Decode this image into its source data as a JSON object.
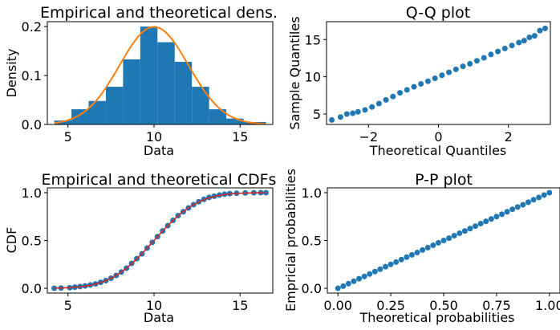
{
  "chart_data": [
    {
      "id": "density",
      "type": "bar",
      "title": "Empirical and theoretical dens.",
      "xlabel": "Data",
      "ylabel": "Density",
      "xlim": [
        3.8,
        16.9
      ],
      "ylim": [
        0,
        0.21
      ],
      "xticks": [
        5,
        10,
        15
      ],
      "yticks": [
        0.0,
        0.1,
        0.2
      ],
      "ytick_labels": [
        "0.0",
        "0.1",
        "0.2"
      ],
      "histogram": {
        "color": "#1f77b4",
        "bins": [
          {
            "x0": 4.2,
            "x1": 5.2,
            "density": 0.008
          },
          {
            "x0": 5.2,
            "x1": 6.2,
            "density": 0.031
          },
          {
            "x0": 6.2,
            "x1": 7.2,
            "density": 0.048
          },
          {
            "x0": 7.2,
            "x1": 8.2,
            "density": 0.077
          },
          {
            "x0": 8.2,
            "x1": 9.2,
            "density": 0.133
          },
          {
            "x0": 9.2,
            "x1": 10.2,
            "density": 0.2
          },
          {
            "x0": 10.2,
            "x1": 11.2,
            "density": 0.168
          },
          {
            "x0": 11.2,
            "x1": 12.2,
            "density": 0.128
          },
          {
            "x0": 12.2,
            "x1": 13.2,
            "density": 0.077
          },
          {
            "x0": 13.2,
            "x1": 14.2,
            "density": 0.031
          },
          {
            "x0": 14.2,
            "x1": 15.2,
            "density": 0.012
          },
          {
            "x0": 15.2,
            "x1": 16.5,
            "density": 0.005
          }
        ]
      },
      "curve": {
        "type": "normal_pdf",
        "mean": 10,
        "sd": 2,
        "x_range": [
          4.2,
          16.5
        ],
        "color": "#ff7f0e"
      }
    },
    {
      "id": "qq",
      "type": "scatter",
      "title": "Q-Q plot",
      "xlabel": "Theoretical Quantiles",
      "ylabel": "Sample Quantiles",
      "xlim": [
        -3.2,
        3.2
      ],
      "ylim": [
        3.6,
        17.4
      ],
      "xticks": [
        -2,
        0,
        2
      ],
      "xtick_labels": [
        "−2",
        "0",
        "2"
      ],
      "yticks": [
        5,
        10,
        15
      ],
      "color": "#1f77b4",
      "points": [
        [
          -3.05,
          4.2
        ],
        [
          -2.8,
          4.6
        ],
        [
          -2.62,
          5.0
        ],
        [
          -2.45,
          5.1
        ],
        [
          -2.3,
          5.3
        ],
        [
          -2.1,
          5.55
        ],
        [
          -1.9,
          5.95
        ],
        [
          -1.7,
          6.4
        ],
        [
          -1.5,
          6.9
        ],
        [
          -1.3,
          7.35
        ],
        [
          -1.1,
          7.85
        ],
        [
          -0.9,
          8.25
        ],
        [
          -0.7,
          8.65
        ],
        [
          -0.5,
          9.05
        ],
        [
          -0.3,
          9.4
        ],
        [
          -0.1,
          9.8
        ],
        [
          0.1,
          10.2
        ],
        [
          0.3,
          10.6
        ],
        [
          0.5,
          11.0
        ],
        [
          0.7,
          11.4
        ],
        [
          0.9,
          11.75
        ],
        [
          1.1,
          12.15
        ],
        [
          1.3,
          12.55
        ],
        [
          1.5,
          13.0
        ],
        [
          1.7,
          13.4
        ],
        [
          1.9,
          13.8
        ],
        [
          2.1,
          14.2
        ],
        [
          2.3,
          14.6
        ],
        [
          2.45,
          14.85
        ],
        [
          2.6,
          15.3
        ],
        [
          2.75,
          15.5
        ],
        [
          2.9,
          16.2
        ],
        [
          3.05,
          16.5
        ]
      ]
    },
    {
      "id": "cdf",
      "type": "scatter",
      "title": "Empirical and theoretical CDFs",
      "xlabel": "Data",
      "ylabel": "CDF",
      "xlim": [
        3.8,
        16.9
      ],
      "ylim": [
        -0.05,
        1.05
      ],
      "xticks": [
        5,
        10,
        15
      ],
      "yticks": [
        0.0,
        0.5,
        1.0
      ],
      "ytick_labels": [
        "0.0",
        "0.5",
        "1.0"
      ],
      "points_color": "#1f77b4",
      "curve": {
        "type": "normal_cdf",
        "mean": 10,
        "sd": 2,
        "x_range": [
          4.2,
          16.5
        ],
        "color": "#d62728"
      },
      "points": [
        [
          4.2,
          0.0
        ],
        [
          4.6,
          0.002
        ],
        [
          5.1,
          0.006
        ],
        [
          5.4,
          0.012
        ],
        [
          5.7,
          0.018
        ],
        [
          6.0,
          0.025
        ],
        [
          6.3,
          0.035
        ],
        [
          6.6,
          0.046
        ],
        [
          6.9,
          0.062
        ],
        [
          7.2,
          0.08
        ],
        [
          7.5,
          0.105
        ],
        [
          7.8,
          0.135
        ],
        [
          8.1,
          0.17
        ],
        [
          8.4,
          0.21
        ],
        [
          8.7,
          0.26
        ],
        [
          9.0,
          0.31
        ],
        [
          9.3,
          0.36
        ],
        [
          9.6,
          0.42
        ],
        [
          9.9,
          0.48
        ],
        [
          10.2,
          0.54
        ],
        [
          10.5,
          0.6
        ],
        [
          10.8,
          0.655
        ],
        [
          11.1,
          0.71
        ],
        [
          11.4,
          0.76
        ],
        [
          11.7,
          0.8
        ],
        [
          12.0,
          0.84
        ],
        [
          12.3,
          0.875
        ],
        [
          12.6,
          0.905
        ],
        [
          12.9,
          0.93
        ],
        [
          13.2,
          0.95
        ],
        [
          13.5,
          0.963
        ],
        [
          13.8,
          0.975
        ],
        [
          14.1,
          0.984
        ],
        [
          14.4,
          0.99
        ],
        [
          14.8,
          0.994
        ],
        [
          15.3,
          0.997
        ],
        [
          15.8,
          0.999
        ],
        [
          16.2,
          1.0
        ],
        [
          16.5,
          1.0
        ]
      ]
    },
    {
      "id": "pp",
      "type": "scatter",
      "title": "P-P plot",
      "xlabel": "Theoretical probabilities",
      "ylabel": "Empricial probabilities",
      "xlim": [
        -0.05,
        1.05
      ],
      "ylim": [
        -0.05,
        1.05
      ],
      "xticks": [
        0.0,
        0.25,
        0.5,
        0.75,
        1.0
      ],
      "xtick_labels": [
        "0.00",
        "0.25",
        "0.50",
        "0.75",
        "1.00"
      ],
      "yticks": [
        0.0,
        0.5,
        1.0
      ],
      "ytick_labels": [
        "0.0",
        "0.5",
        "1.0"
      ],
      "color": "#1f77b4",
      "points": [
        [
          0.0,
          0.0
        ],
        [
          0.025,
          0.022
        ],
        [
          0.05,
          0.048
        ],
        [
          0.075,
          0.074
        ],
        [
          0.1,
          0.1
        ],
        [
          0.125,
          0.124
        ],
        [
          0.15,
          0.149
        ],
        [
          0.175,
          0.175
        ],
        [
          0.2,
          0.2
        ],
        [
          0.225,
          0.226
        ],
        [
          0.25,
          0.25
        ],
        [
          0.275,
          0.274
        ],
        [
          0.3,
          0.3
        ],
        [
          0.325,
          0.326
        ],
        [
          0.35,
          0.35
        ],
        [
          0.375,
          0.374
        ],
        [
          0.4,
          0.4
        ],
        [
          0.425,
          0.425
        ],
        [
          0.45,
          0.45
        ],
        [
          0.475,
          0.476
        ],
        [
          0.5,
          0.5
        ],
        [
          0.525,
          0.524
        ],
        [
          0.55,
          0.55
        ],
        [
          0.575,
          0.576
        ],
        [
          0.6,
          0.6
        ],
        [
          0.625,
          0.624
        ],
        [
          0.65,
          0.65
        ],
        [
          0.675,
          0.676
        ],
        [
          0.7,
          0.7
        ],
        [
          0.725,
          0.725
        ],
        [
          0.75,
          0.75
        ],
        [
          0.775,
          0.774
        ],
        [
          0.8,
          0.8
        ],
        [
          0.825,
          0.826
        ],
        [
          0.85,
          0.85
        ],
        [
          0.875,
          0.874
        ],
        [
          0.9,
          0.9
        ],
        [
          0.925,
          0.926
        ],
        [
          0.95,
          0.95
        ],
        [
          0.975,
          0.976
        ],
        [
          1.0,
          1.0
        ]
      ]
    }
  ]
}
